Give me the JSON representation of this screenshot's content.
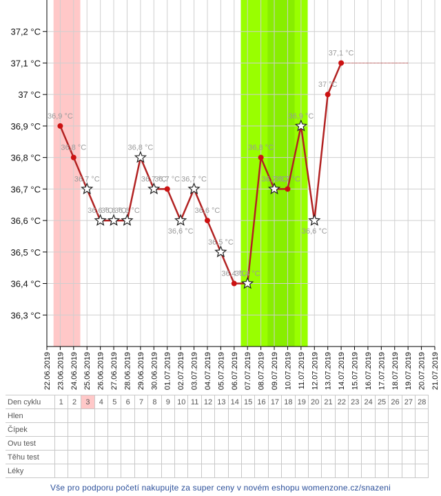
{
  "chart_data": {
    "type": "line",
    "y_tick_labels": [
      "37,2 °C",
      "37,1 °C",
      "37 °C",
      "36,9 °C",
      "36,8 °C",
      "36,7 °C",
      "36,6 °C",
      "36,5 °C",
      "36,4 °C",
      "36,3 °C"
    ],
    "y_tick_values": [
      37.2,
      37.1,
      37.0,
      36.9,
      36.8,
      36.7,
      36.6,
      36.5,
      36.4,
      36.3
    ],
    "ylim": [
      36.2,
      37.3
    ],
    "x_dates": [
      "22.06.2019",
      "23.06.2019",
      "24.06.2019",
      "25.06.2019",
      "26.06.2019",
      "27.06.2019",
      "28.06.2019",
      "29.06.2019",
      "30.06.2019",
      "01.07.2019",
      "02.07.2019",
      "03.07.2019",
      "04.07.2019",
      "05.07.2019",
      "06.07.2019",
      "07.07.2019",
      "08.07.2019",
      "09.07.2019",
      "10.07.2019",
      "11.07.2019",
      "12.07.2019",
      "13.07.2019",
      "14.07.2019",
      "15.07.2019",
      "16.07.2019",
      "17.07.2019",
      "18.07.2019",
      "19.07.2019",
      "20.07.2019",
      "21.07.2019"
    ],
    "points": [
      {
        "date": "23.06.2019",
        "value": 36.9,
        "label": "36,9 °C",
        "marker": "dot"
      },
      {
        "date": "24.06.2019",
        "value": 36.8,
        "label": "36,8 °C",
        "marker": "dot"
      },
      {
        "date": "25.06.2019",
        "value": 36.7,
        "label": "36,7 °C",
        "marker": "star"
      },
      {
        "date": "26.06.2019",
        "value": 36.6,
        "label": "36,6 °C",
        "marker": "star"
      },
      {
        "date": "27.06.2019",
        "value": 36.6,
        "label": "36,6 °C",
        "marker": "star"
      },
      {
        "date": "28.06.2019",
        "value": 36.6,
        "label": "36,6 °C",
        "marker": "star"
      },
      {
        "date": "29.06.2019",
        "value": 36.8,
        "label": "36,8 °C",
        "marker": "star"
      },
      {
        "date": "30.06.2019",
        "value": 36.7,
        "label": "36,7 °C",
        "marker": "star"
      },
      {
        "date": "01.07.2019",
        "value": 36.7,
        "label": "36,7 °C",
        "marker": "dot"
      },
      {
        "date": "02.07.2019",
        "value": 36.6,
        "label": "36,6 °C",
        "marker": "star"
      },
      {
        "date": "03.07.2019",
        "value": 36.7,
        "label": "36,7 °C",
        "marker": "star"
      },
      {
        "date": "04.07.2019",
        "value": 36.6,
        "label": "36,6 °C",
        "marker": "dot"
      },
      {
        "date": "05.07.2019",
        "value": 36.5,
        "label": "36,5 °C",
        "marker": "star"
      },
      {
        "date": "06.07.2019",
        "value": 36.4,
        "label": "36,4 °C",
        "marker": "dot"
      },
      {
        "date": "07.07.2019",
        "value": 36.4,
        "label": "36,4 °C",
        "marker": "star"
      },
      {
        "date": "08.07.2019",
        "value": 36.8,
        "label": "36,8 °C",
        "marker": "dot"
      },
      {
        "date": "09.07.2019",
        "value": 36.7,
        "label": "36,7 °C",
        "marker": "star"
      },
      {
        "date": "10.07.2019",
        "value": 36.7,
        "label": "36,7 °C",
        "marker": "dot"
      },
      {
        "date": "11.07.2019",
        "value": 36.9,
        "label": "36,9 °C",
        "marker": "star"
      },
      {
        "date": "12.07.2019",
        "value": 36.6,
        "label": "36,6 °C",
        "marker": "star"
      },
      {
        "date": "13.07.2019",
        "value": 37.0,
        "label": "37 °C",
        "marker": "dot"
      },
      {
        "date": "14.07.2019",
        "value": 37.1,
        "label": "37,1 °C",
        "marker": "dot"
      }
    ],
    "projection": {
      "from": "14.07.2019",
      "to": "19.07.2019",
      "value": 37.1
    },
    "bands": [
      {
        "from": "23.06.2019",
        "to": "24.06.2019",
        "color": "#ffc8c8"
      },
      {
        "from": "07.07.2019",
        "to": "11.07.2019",
        "color": "#99ff00"
      },
      {
        "from": "10.07.2019",
        "to": "10.07.2019",
        "color": "#66bb00"
      },
      {
        "from": "09.07.2019",
        "to": "10.07.2019",
        "color": "#88ee00"
      }
    ],
    "grid": true,
    "line_color": "#b22222",
    "point_color": "#cc1111"
  },
  "table": {
    "rows": [
      {
        "label": "Den cyklu",
        "cells": [
          "1",
          "2",
          "3",
          "4",
          "5",
          "6",
          "7",
          "8",
          "9",
          "10",
          "11",
          "12",
          "13",
          "14",
          "15",
          "16",
          "17",
          "18",
          "19",
          "20",
          "21",
          "22",
          "23",
          "24",
          "25",
          "26",
          "27",
          "28"
        ]
      },
      {
        "label": "Hlen",
        "cells": []
      },
      {
        "label": "Čípek",
        "cells": []
      },
      {
        "label": "Ovu test",
        "cells": []
      },
      {
        "label": "Těhu test",
        "cells": []
      },
      {
        "label": "Léky",
        "cells": []
      }
    ],
    "highlight_day": "3"
  },
  "footer": {
    "text": "Vše pro podporu početí nakupujte za super ceny v novém eshopu womenzone.cz/snazeni"
  }
}
